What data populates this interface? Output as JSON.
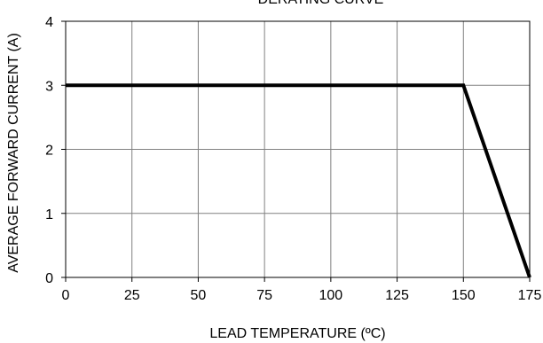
{
  "chart_data": {
    "type": "line",
    "title": "DERATING CURVE",
    "xlabel": "LEAD TEMPERATURE (ºC)",
    "ylabel": "AVERAGE FORWARD CURRENT (A)",
    "xlim": [
      0,
      175
    ],
    "ylim": [
      0,
      4
    ],
    "xticks": [
      0,
      25,
      50,
      75,
      100,
      125,
      150,
      175
    ],
    "yticks": [
      0,
      1,
      2,
      3,
      4
    ],
    "grid": true,
    "legend": "none",
    "series": [
      {
        "x": [
          0,
          150,
          175
        ],
        "y": [
          3,
          3,
          0
        ],
        "color": "#000000"
      }
    ]
  }
}
